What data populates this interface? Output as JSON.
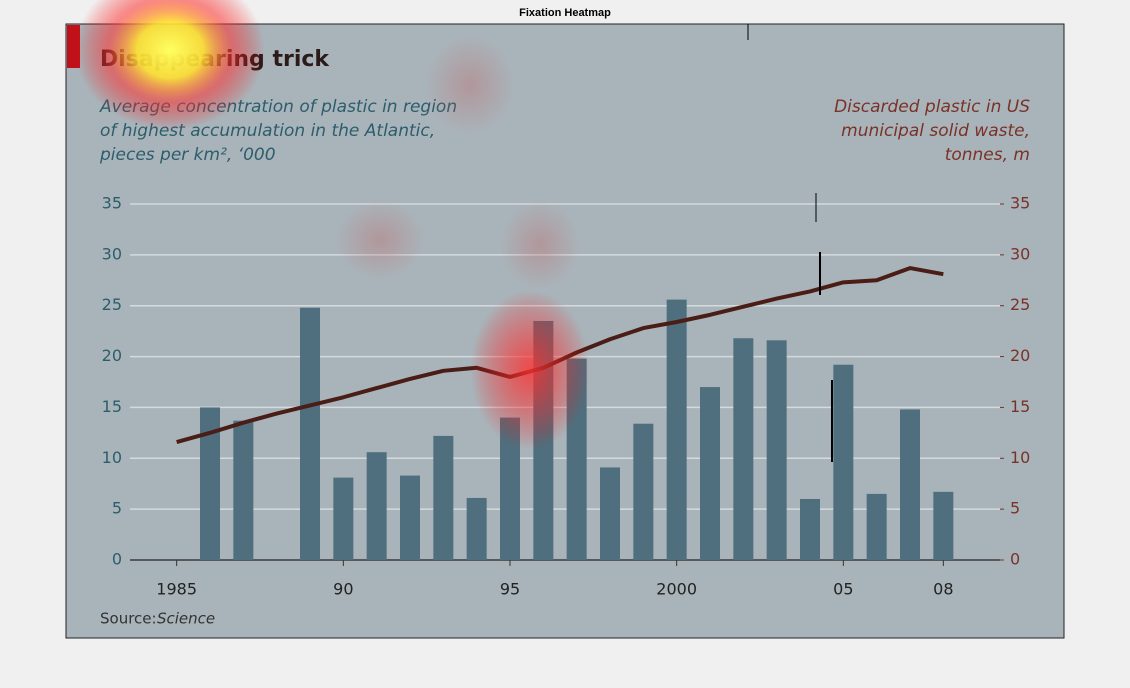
{
  "figure_title": "Fixation Heatmap",
  "chart_data": {
    "type": "bar",
    "title": "Disappearing trick",
    "subtitle": [
      "Average concentration of plastic in region",
      "of highest accumulation in the Atlantic,",
      "pieces per km², ‘000"
    ],
    "y2label": [
      "Discarded plastic in US",
      "municipal solid waste,",
      "tonnes, m"
    ],
    "source_label": "Source:",
    "source": "Science",
    "x": [
      1985,
      1986,
      1987,
      1988,
      1989,
      1990,
      1991,
      1992,
      1993,
      1994,
      1995,
      1996,
      1997,
      1998,
      1999,
      2000,
      2001,
      2002,
      2003,
      2004,
      2005,
      2006,
      2007,
      2008
    ],
    "series": [
      {
        "type": "bar",
        "color": "#4f6f7e",
        "values": [
          null,
          15,
          13.7,
          null,
          24.8,
          8.1,
          10.6,
          8.3,
          12.2,
          6.1,
          14,
          23.5,
          19.8,
          9.1,
          13.4,
          25.6,
          17,
          21.8,
          21.6,
          6,
          19.2,
          6.5,
          14.8,
          6.7
        ]
      },
      {
        "type": "line",
        "axis": "y2",
        "color": "#4a1d16",
        "values": [
          11.6,
          12.5,
          13.5,
          14.4,
          15.2,
          16.0,
          16.9,
          17.8,
          18.6,
          18.9,
          18.0,
          18.9,
          20.4,
          21.7,
          22.8,
          23.4,
          24.1,
          24.9,
          25.7,
          26.4,
          27.3,
          27.5,
          28.7,
          28.1
        ]
      }
    ],
    "xlim": [
      1983.6,
      2009.7
    ],
    "xticks": [
      1985,
      {
        "value": 1990,
        "label": "90"
      },
      {
        "value": 1995,
        "label": "95"
      },
      2000,
      {
        "value": 2005,
        "label": "05"
      },
      {
        "value": 2008,
        "label": "08"
      }
    ],
    "ylim": [
      0,
      35
    ],
    "yticks": [
      0,
      5,
      10,
      15,
      20,
      25,
      30,
      35
    ],
    "y2lim": [
      0,
      35
    ],
    "y2ticks": [
      0,
      5,
      10,
      15,
      20,
      25,
      30,
      35
    ],
    "grid": true
  }
}
